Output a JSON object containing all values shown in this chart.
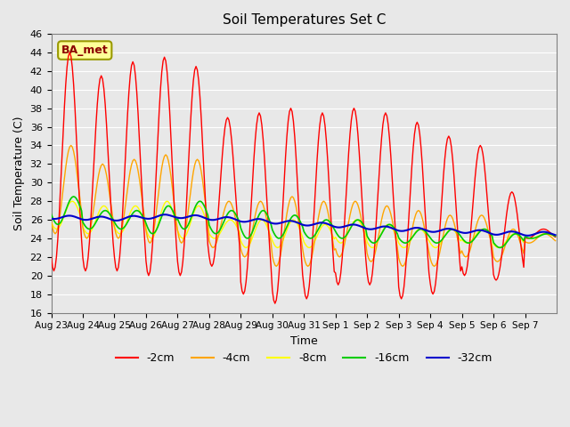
{
  "title": "Soil Temperatures Set C",
  "xlabel": "Time",
  "ylabel": "Soil Temperature (C)",
  "ylim": [
    16,
    46
  ],
  "yticks": [
    16,
    18,
    20,
    22,
    24,
    26,
    28,
    30,
    32,
    34,
    36,
    38,
    40,
    42,
    44,
    46
  ],
  "x_labels": [
    "Aug 23",
    "Aug 24",
    "Aug 25",
    "Aug 26",
    "Aug 27",
    "Aug 28",
    "Aug 29",
    "Aug 30",
    "Aug 31",
    "Sep 1",
    "Sep 2",
    "Sep 3",
    "Sep 4",
    "Sep 5",
    "Sep 6",
    "Sep 7"
  ],
  "legend_labels": [
    "-2cm",
    "-4cm",
    "-8cm",
    "-16cm",
    "-32cm"
  ],
  "colors": {
    "-2cm": "#FF0000",
    "-4cm": "#FFA500",
    "-8cm": "#FFFF00",
    "-16cm": "#00CC00",
    "-32cm": "#0000CC"
  },
  "background_color": "#E8E8E8",
  "annotation_text": "BA_met",
  "annotation_box_color": "#FFFF99",
  "annotation_border_color": "#999900",
  "day_max_2cm": [
    44,
    41.5,
    43,
    43.5,
    42.5,
    37,
    37.5,
    38,
    37.5,
    38,
    37.5,
    36.5,
    35,
    34,
    29,
    25
  ],
  "day_min_2cm": [
    20.5,
    20.5,
    20.5,
    20,
    20,
    21,
    18,
    17,
    17.5,
    19,
    19,
    17.5,
    18,
    20,
    19.5,
    24
  ],
  "day_max_4cm": [
    34,
    32,
    32.5,
    33,
    32.5,
    28,
    28,
    28.5,
    28,
    28,
    27.5,
    27,
    26.5,
    26.5,
    25,
    24.5
  ],
  "day_min_4cm": [
    24.5,
    24,
    24,
    23.5,
    23.5,
    23,
    22,
    21,
    21,
    22,
    21.5,
    21,
    21,
    22,
    21.5,
    23.5
  ],
  "day_max_8cm": [
    28,
    27.5,
    27.5,
    28,
    27.5,
    26,
    26,
    26,
    25.5,
    26,
    25.5,
    25,
    25,
    25,
    24.5,
    24.5
  ],
  "day_min_8cm": [
    25,
    24.5,
    24.5,
    24,
    24,
    24,
    23,
    23,
    23,
    23.5,
    23,
    23,
    23,
    23.5,
    23,
    24
  ],
  "day_max_16cm": [
    28.5,
    27,
    27,
    27.5,
    28,
    27,
    27,
    26.5,
    26,
    26,
    25.5,
    25,
    25,
    25,
    24.5,
    24.5
  ],
  "day_min_16cm": [
    25.5,
    25,
    25,
    24.5,
    25,
    24.5,
    24,
    24,
    24,
    24,
    23.5,
    23.5,
    23.5,
    23.5,
    23,
    24
  ],
  "day_mean_32cm": [
    26.3,
    26.2,
    26.1,
    26.3,
    26.4,
    26.2,
    26.0,
    25.8,
    25.6,
    25.4,
    25.2,
    25.0,
    24.9,
    24.8,
    24.6,
    24.5
  ]
}
